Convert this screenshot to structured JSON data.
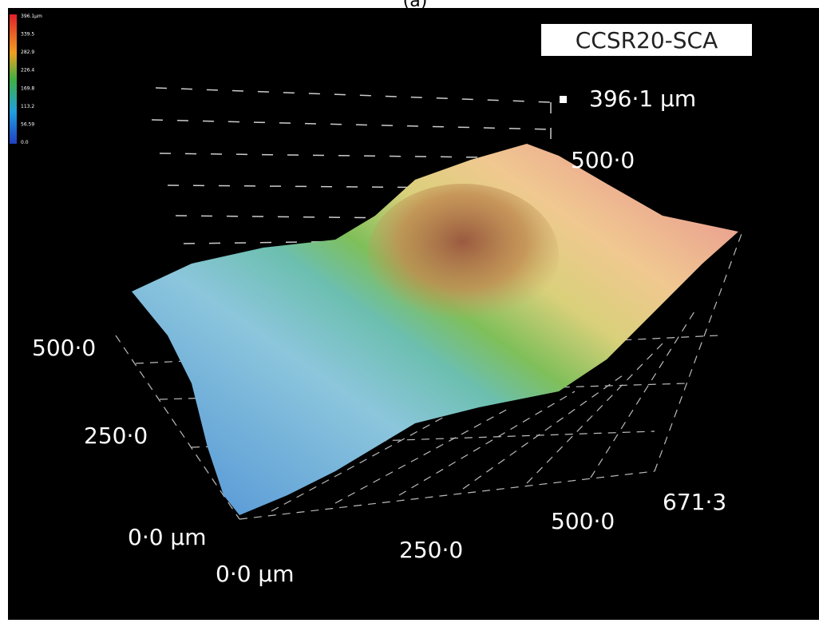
{
  "caption": "(a)",
  "sample_label": "CCSR20-SCA",
  "z_max_label": "396·1 µm",
  "color_scale": {
    "labels": [
      "396.1µm",
      "339.5",
      "282.9",
      "226.4",
      "169.8",
      "113.2",
      "56.59",
      "0.0"
    ]
  },
  "axes": {
    "z_top_label": "500·0",
    "y_labels": [
      "500·0",
      "250·0",
      "0·0 µm"
    ],
    "x_labels": [
      "0·0 µm",
      "250·0",
      "500·0"
    ],
    "x_end_label": "671·3"
  }
}
